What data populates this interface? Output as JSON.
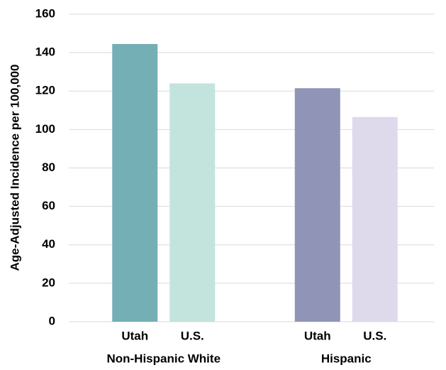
{
  "chart_data": {
    "type": "bar",
    "y_label": "Age-Adjusted Incidence per 100,000",
    "groups": [
      {
        "name": "Non-Hispanic White",
        "bars": [
          {
            "label": "Utah",
            "value": 144.5,
            "color": "#74afb5"
          },
          {
            "label": "U.S.",
            "value": 124,
            "color": "#c2e4dc"
          }
        ]
      },
      {
        "name": "Hispanic",
        "bars": [
          {
            "label": "Utah",
            "value": 121.5,
            "color": "#9094b6"
          },
          {
            "label": "U.S.",
            "value": 106.5,
            "color": "#dfd9ec"
          }
        ]
      }
    ],
    "ylim": [
      0,
      160
    ],
    "yticks": [
      0,
      20,
      40,
      60,
      80,
      100,
      120,
      140,
      160
    ],
    "grid": true
  }
}
